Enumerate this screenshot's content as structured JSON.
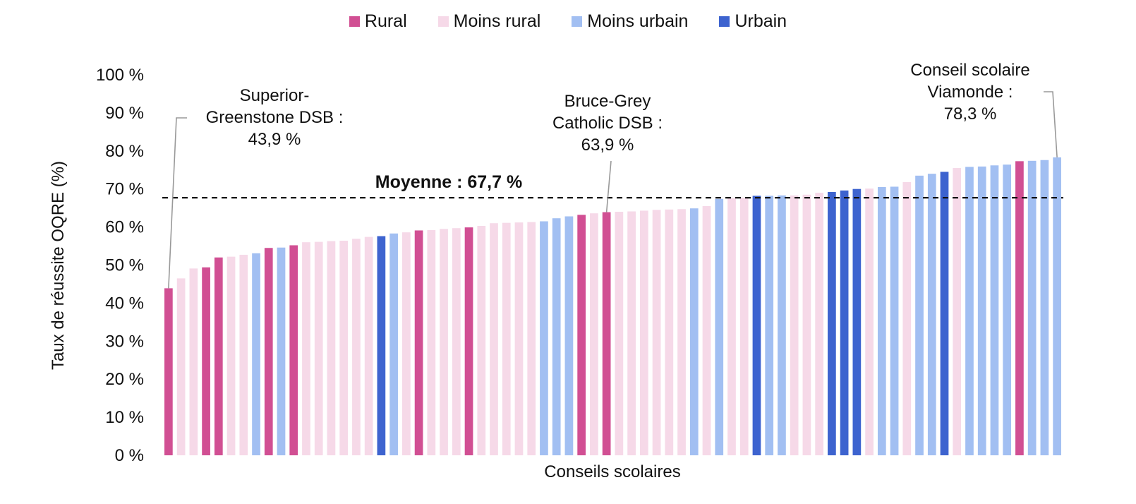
{
  "legend": {
    "rural": "Rural",
    "less_rural": "Moins rural",
    "less_urban": "Moins urbain",
    "urban": "Urbain"
  },
  "colors": {
    "rural": "#d14f93",
    "less_rural": "#f6d9e8",
    "less_urban": "#a2bff2",
    "urban": "#3d63cf"
  },
  "chart_data": {
    "type": "bar",
    "xlabel": "Conseils scolaires",
    "ylabel": "Taux de réussite OQRE (%)",
    "ylim": [
      0,
      100
    ],
    "yticks": [
      "0 %",
      "10 %",
      "20 %",
      "30 %",
      "40 %",
      "50 %",
      "60 %",
      "70 %",
      "80 %",
      "90 %",
      "100 %"
    ],
    "grid": false,
    "legend_position": "top-center",
    "series": [
      {
        "name": "Rural",
        "key": "rural"
      },
      {
        "name": "Moins rural",
        "key": "less_rural"
      },
      {
        "name": "Moins urbain",
        "key": "less_urban"
      },
      {
        "name": "Urbain",
        "key": "urban"
      }
    ],
    "bars": [
      {
        "v": 43.9,
        "c": "rural"
      },
      {
        "v": 46.5,
        "c": "less_rural"
      },
      {
        "v": 49.1,
        "c": "less_rural"
      },
      {
        "v": 49.4,
        "c": "rural"
      },
      {
        "v": 52.0,
        "c": "rural"
      },
      {
        "v": 52.2,
        "c": "less_rural"
      },
      {
        "v": 52.7,
        "c": "less_rural"
      },
      {
        "v": 53.1,
        "c": "less_urban"
      },
      {
        "v": 54.5,
        "c": "rural"
      },
      {
        "v": 54.6,
        "c": "less_urban"
      },
      {
        "v": 55.2,
        "c": "rural"
      },
      {
        "v": 56.0,
        "c": "less_rural"
      },
      {
        "v": 56.1,
        "c": "less_rural"
      },
      {
        "v": 56.3,
        "c": "less_rural"
      },
      {
        "v": 56.4,
        "c": "less_rural"
      },
      {
        "v": 56.9,
        "c": "less_rural"
      },
      {
        "v": 57.4,
        "c": "less_rural"
      },
      {
        "v": 57.6,
        "c": "urban"
      },
      {
        "v": 58.3,
        "c": "less_urban"
      },
      {
        "v": 58.6,
        "c": "less_rural"
      },
      {
        "v": 59.1,
        "c": "rural"
      },
      {
        "v": 59.2,
        "c": "less_rural"
      },
      {
        "v": 59.5,
        "c": "less_rural"
      },
      {
        "v": 59.7,
        "c": "less_rural"
      },
      {
        "v": 59.9,
        "c": "rural"
      },
      {
        "v": 60.3,
        "c": "less_rural"
      },
      {
        "v": 61.0,
        "c": "less_rural"
      },
      {
        "v": 61.1,
        "c": "less_rural"
      },
      {
        "v": 61.2,
        "c": "less_rural"
      },
      {
        "v": 61.3,
        "c": "less_rural"
      },
      {
        "v": 61.5,
        "c": "less_urban"
      },
      {
        "v": 62.3,
        "c": "less_urban"
      },
      {
        "v": 62.8,
        "c": "less_urban"
      },
      {
        "v": 63.2,
        "c": "rural"
      },
      {
        "v": 63.6,
        "c": "less_rural"
      },
      {
        "v": 63.9,
        "c": "rural"
      },
      {
        "v": 64.0,
        "c": "less_rural"
      },
      {
        "v": 64.1,
        "c": "less_rural"
      },
      {
        "v": 64.3,
        "c": "less_rural"
      },
      {
        "v": 64.5,
        "c": "less_rural"
      },
      {
        "v": 64.6,
        "c": "less_rural"
      },
      {
        "v": 64.7,
        "c": "less_rural"
      },
      {
        "v": 64.9,
        "c": "less_urban"
      },
      {
        "v": 65.5,
        "c": "less_rural"
      },
      {
        "v": 67.4,
        "c": "less_urban"
      },
      {
        "v": 67.6,
        "c": "less_rural"
      },
      {
        "v": 67.7,
        "c": "less_rural"
      },
      {
        "v": 68.2,
        "c": "urban"
      },
      {
        "v": 68.2,
        "c": "less_urban"
      },
      {
        "v": 68.3,
        "c": "less_urban"
      },
      {
        "v": 68.3,
        "c": "less_rural"
      },
      {
        "v": 68.5,
        "c": "less_rural"
      },
      {
        "v": 69.0,
        "c": "less_rural"
      },
      {
        "v": 69.2,
        "c": "urban"
      },
      {
        "v": 69.6,
        "c": "urban"
      },
      {
        "v": 70.0,
        "c": "urban"
      },
      {
        "v": 70.1,
        "c": "less_rural"
      },
      {
        "v": 70.5,
        "c": "less_urban"
      },
      {
        "v": 70.6,
        "c": "less_urban"
      },
      {
        "v": 71.8,
        "c": "less_rural"
      },
      {
        "v": 73.5,
        "c": "less_urban"
      },
      {
        "v": 74.0,
        "c": "less_urban"
      },
      {
        "v": 74.5,
        "c": "urban"
      },
      {
        "v": 75.5,
        "c": "less_rural"
      },
      {
        "v": 75.8,
        "c": "less_urban"
      },
      {
        "v": 75.9,
        "c": "less_urban"
      },
      {
        "v": 76.2,
        "c": "less_urban"
      },
      {
        "v": 76.4,
        "c": "less_urban"
      },
      {
        "v": 77.3,
        "c": "rural"
      },
      {
        "v": 77.4,
        "c": "less_urban"
      },
      {
        "v": 77.6,
        "c": "less_urban"
      },
      {
        "v": 78.3,
        "c": "less_urban"
      }
    ],
    "mean": {
      "value": 67.7,
      "label": "Moyenne : 67,7 %"
    },
    "annotations": [
      {
        "bar_index": 0,
        "lines": [
          "Superior-",
          "Greenstone DSB :",
          "43,9 %"
        ]
      },
      {
        "bar_index": 35,
        "lines": [
          "Bruce-Grey",
          "Catholic DSB :",
          "63,9 %"
        ]
      },
      {
        "bar_index": 71,
        "lines": [
          "Conseil scolaire",
          "Viamonde :",
          "78,3 %"
        ]
      }
    ]
  }
}
